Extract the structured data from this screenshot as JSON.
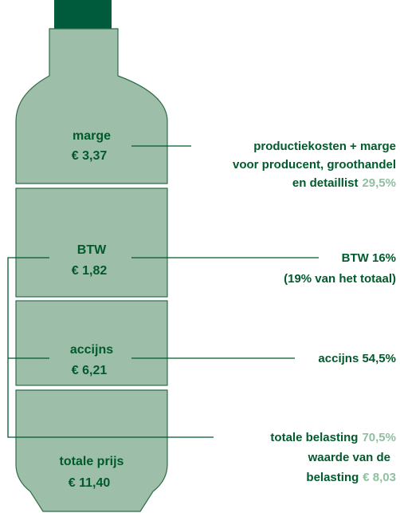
{
  "segments": [
    {
      "label": "marge",
      "value": "€  3,37"
    },
    {
      "label": "BTW",
      "value": "€  1,82"
    },
    {
      "label": "accijns",
      "value": "€  6,21"
    },
    {
      "label": "totale prijs",
      "value": "€  11,40"
    }
  ],
  "annotations": [
    {
      "lines": [
        {
          "text": "productiekosten + marge"
        },
        {
          "text": "voor producent, groothandel"
        },
        {
          "text": "en detaillist",
          "highlight": "29,5%"
        }
      ]
    },
    {
      "lines": [
        {
          "text": "BTW 16%"
        },
        {
          "text": "(19% van het totaal)"
        }
      ]
    },
    {
      "lines": [
        {
          "text": "accijns 54,5%"
        }
      ]
    },
    {
      "lines": [
        {
          "text": "totale belasting",
          "highlight": "70,5%"
        },
        {
          "text": "waarde van de"
        },
        {
          "text": "belasting",
          "highlight": "€  8,03"
        }
      ]
    }
  ]
}
